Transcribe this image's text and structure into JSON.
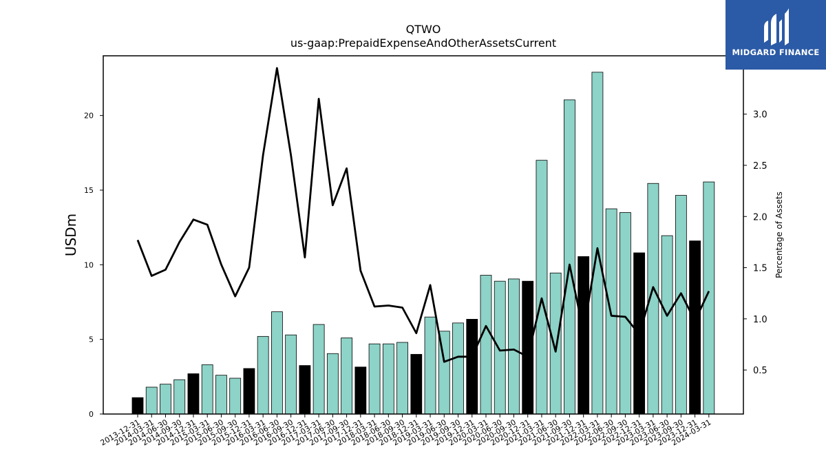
{
  "chart_data": {
    "type": "bar",
    "title": "QTWO",
    "subtitle": "us-gaap:PrepaidExpenseAndOtherAssetsCurrent",
    "ylabel": "USDm",
    "y2label": "Percentage of Assets",
    "ylim": [
      0,
      24
    ],
    "y2lim": [
      0.07,
      3.57
    ],
    "yticks": [
      0,
      5,
      10,
      15,
      20
    ],
    "y2ticks": [
      0.5,
      1.0,
      1.5,
      2.0,
      2.5,
      3.0
    ],
    "grid": false,
    "categories": [
      "2013-12-31",
      "2014-03-31",
      "2014-06-30",
      "2014-09-30",
      "2014-12-31",
      "2015-03-31",
      "2015-06-30",
      "2015-09-30",
      "2015-12-31",
      "2016-03-31",
      "2016-06-30",
      "2016-09-30",
      "2016-12-31",
      "2017-03-31",
      "2017-06-30",
      "2017-09-30",
      "2017-12-31",
      "2018-03-31",
      "2018-06-30",
      "2018-09-30",
      "2018-12-31",
      "2019-03-31",
      "2019-06-30",
      "2019-09-30",
      "2019-12-31",
      "2020-03-31",
      "2020-06-30",
      "2020-09-30",
      "2020-12-31",
      "2021-03-31",
      "2021-06-30",
      "2021-09-30",
      "2021-12-31",
      "2022-03-31",
      "2022-06-30",
      "2022-09-30",
      "2022-12-31",
      "2023-03-31",
      "2023-06-30",
      "2023-09-30",
      "2023-12-31",
      "2024-03-31"
    ],
    "series": [
      {
        "type": "bar",
        "axis": "left",
        "values": [
          1.1,
          1.8,
          2.0,
          2.3,
          2.7,
          3.3,
          2.6,
          2.4,
          3.05,
          5.2,
          6.85,
          5.3,
          3.25,
          6.0,
          4.05,
          5.1,
          3.15,
          4.7,
          4.7,
          4.8,
          4.0,
          6.5,
          5.55,
          6.1,
          6.35,
          9.3,
          8.9,
          9.05,
          8.9,
          17.0,
          9.45,
          21.05,
          10.55,
          22.9,
          13.75,
          13.5,
          10.8,
          15.45,
          11.95,
          14.65,
          11.6,
          15.55
        ],
        "colors": [
          "#000000",
          "#8dd3c7",
          "#8dd3c7",
          "#8dd3c7",
          "#000000",
          "#8dd3c7",
          "#8dd3c7",
          "#8dd3c7",
          "#000000",
          "#8dd3c7",
          "#8dd3c7",
          "#8dd3c7",
          "#000000",
          "#8dd3c7",
          "#8dd3c7",
          "#8dd3c7",
          "#000000",
          "#8dd3c7",
          "#8dd3c7",
          "#8dd3c7",
          "#000000",
          "#8dd3c7",
          "#8dd3c7",
          "#8dd3c7",
          "#000000",
          "#8dd3c7",
          "#8dd3c7",
          "#8dd3c7",
          "#000000",
          "#8dd3c7",
          "#8dd3c7",
          "#8dd3c7",
          "#000000",
          "#8dd3c7",
          "#8dd3c7",
          "#8dd3c7",
          "#000000",
          "#8dd3c7",
          "#8dd3c7",
          "#8dd3c7",
          "#000000",
          "#8dd3c7"
        ]
      },
      {
        "type": "line",
        "axis": "right",
        "color": "#000000",
        "values": [
          1.77,
          1.42,
          1.48,
          1.75,
          1.97,
          1.92,
          1.53,
          1.22,
          1.5,
          2.6,
          3.45,
          2.6,
          1.6,
          3.15,
          2.11,
          2.47,
          1.47,
          1.12,
          1.13,
          1.11,
          0.86,
          1.33,
          0.58,
          0.63,
          0.63,
          0.93,
          0.69,
          0.7,
          0.63,
          1.2,
          0.68,
          1.53,
          0.87,
          1.69,
          1.03,
          1.02,
          0.85,
          1.31,
          1.03,
          1.25,
          0.98,
          1.27
        ]
      }
    ]
  },
  "brand": {
    "name": "MIDGARD FINANCE",
    "icon": "midgard-logo-icon",
    "background": "#2b5aa6"
  }
}
